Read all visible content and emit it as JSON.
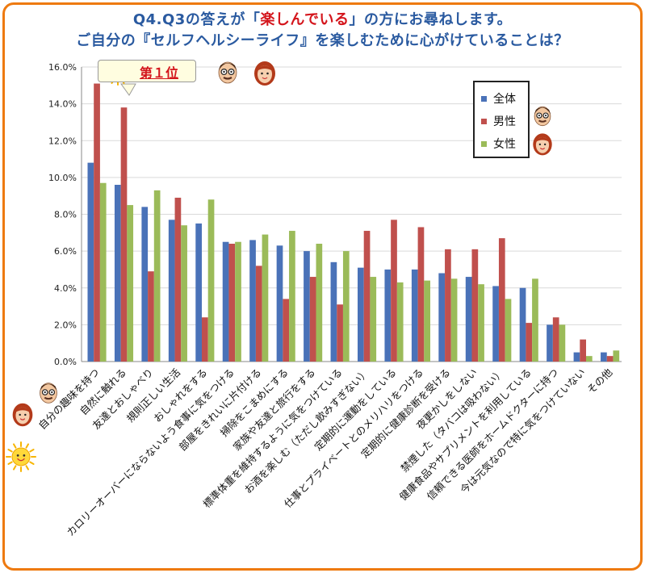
{
  "title": {
    "line1_a": "Q4.Q3の答えが「",
    "line1_hl": "楽しんでいる",
    "line1_b": "」の方にお尋ねします。",
    "line2": "ご自分の『セルフヘルシーライフ』を楽しむために心がけていることは？"
  },
  "badge": {
    "text": "第１位"
  },
  "colors": {
    "all": "#4a72b8",
    "male": "#c0504d",
    "female": "#9bbb59",
    "frame": "#ee7a10",
    "title": "#2a5aa0",
    "highlight": "#d4151c"
  },
  "icons": [
    "sun-icon",
    "man-face-icon",
    "woman-face-icon"
  ],
  "chart_data": {
    "type": "bar",
    "ylim": [
      0,
      16
    ],
    "y_ticks": [
      "0.0%",
      "2.0%",
      "4.0%",
      "6.0%",
      "8.0%",
      "10.0%",
      "12.0%",
      "14.0%",
      "16.0%"
    ],
    "categories": [
      "自分の趣味を持つ",
      "自然に触れる",
      "友達とおしゃべり",
      "規則正しい生活",
      "おしゃれをする",
      "カロリーオーバーにならないよう食事に気をつける",
      "部屋をきれいに片付ける",
      "掃除をこまめにする",
      "家族や友達と旅行をする",
      "標準体重を維持するように気をつけている",
      "お酒を楽しむ（ただし飲みすぎない）",
      "定期的に運動をしている",
      "仕事とプライベートとのメリハリをつける",
      "定期的に健康診断を受ける",
      "夜更かしをしない",
      "禁煙した（タバコは吸わない）",
      "健康食品やサプリメントを利用している",
      "信頼できる医師をホームドクターに持つ",
      "今は元気なので特に気をつけていない",
      "その他"
    ],
    "series": [
      {
        "name": "全体",
        "values": [
          10.8,
          9.6,
          8.4,
          7.7,
          7.5,
          6.5,
          6.6,
          6.3,
          6.0,
          5.4,
          5.1,
          5.0,
          5.0,
          4.8,
          4.6,
          4.1,
          4.0,
          2.0,
          0.5,
          0.5
        ]
      },
      {
        "name": "男性",
        "values": [
          15.1,
          13.8,
          4.9,
          8.9,
          2.4,
          6.4,
          5.2,
          3.4,
          4.6,
          3.1,
          7.1,
          7.7,
          7.3,
          6.1,
          6.1,
          6.7,
          2.1,
          2.4,
          1.2,
          0.3
        ]
      },
      {
        "name": "女性",
        "values": [
          9.7,
          8.5,
          9.3,
          7.4,
          8.8,
          6.5,
          6.9,
          7.1,
          6.4,
          6.0,
          4.6,
          4.3,
          4.4,
          4.5,
          4.2,
          3.4,
          4.5,
          2.0,
          0.3,
          0.6
        ]
      }
    ]
  }
}
